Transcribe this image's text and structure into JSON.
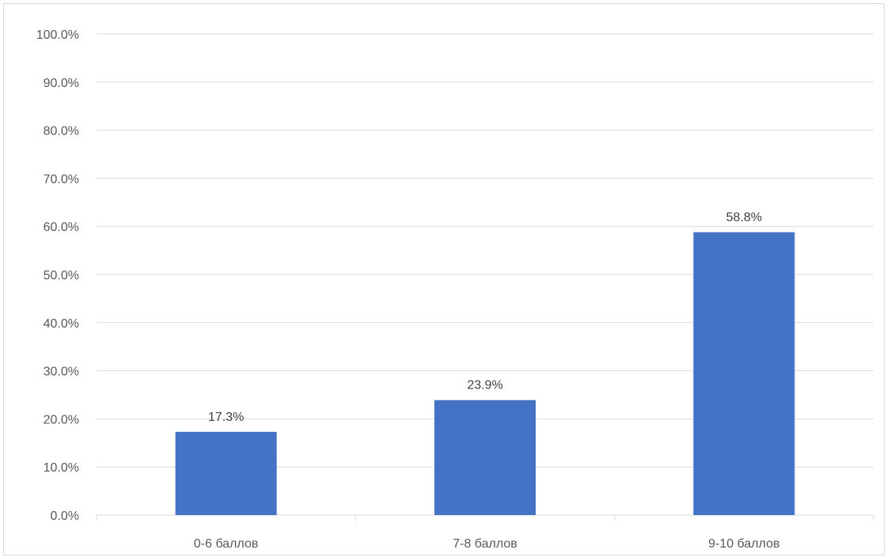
{
  "chart_data": {
    "type": "bar",
    "categories": [
      "0-6 баллов",
      "7-8 баллов",
      "9-10 баллов"
    ],
    "values": [
      17.3,
      23.9,
      58.8
    ],
    "data_labels": [
      "17.3%",
      "23.9%",
      "58.8%"
    ],
    "title": "",
    "xlabel": "",
    "ylabel": "",
    "ylim": [
      0,
      100
    ],
    "yticks": [
      0,
      10,
      20,
      30,
      40,
      50,
      60,
      70,
      80,
      90,
      100
    ],
    "ytick_labels": [
      "0.0%",
      "10.0%",
      "20.0%",
      "30.0%",
      "40.0%",
      "50.0%",
      "60.0%",
      "70.0%",
      "80.0%",
      "90.0%",
      "100.0%"
    ],
    "grid": true,
    "legend": "none",
    "bar_color": "#4472c4",
    "grid_color": "#d9d9d9",
    "tick_color": "#595959",
    "label_color": "#404040"
  }
}
